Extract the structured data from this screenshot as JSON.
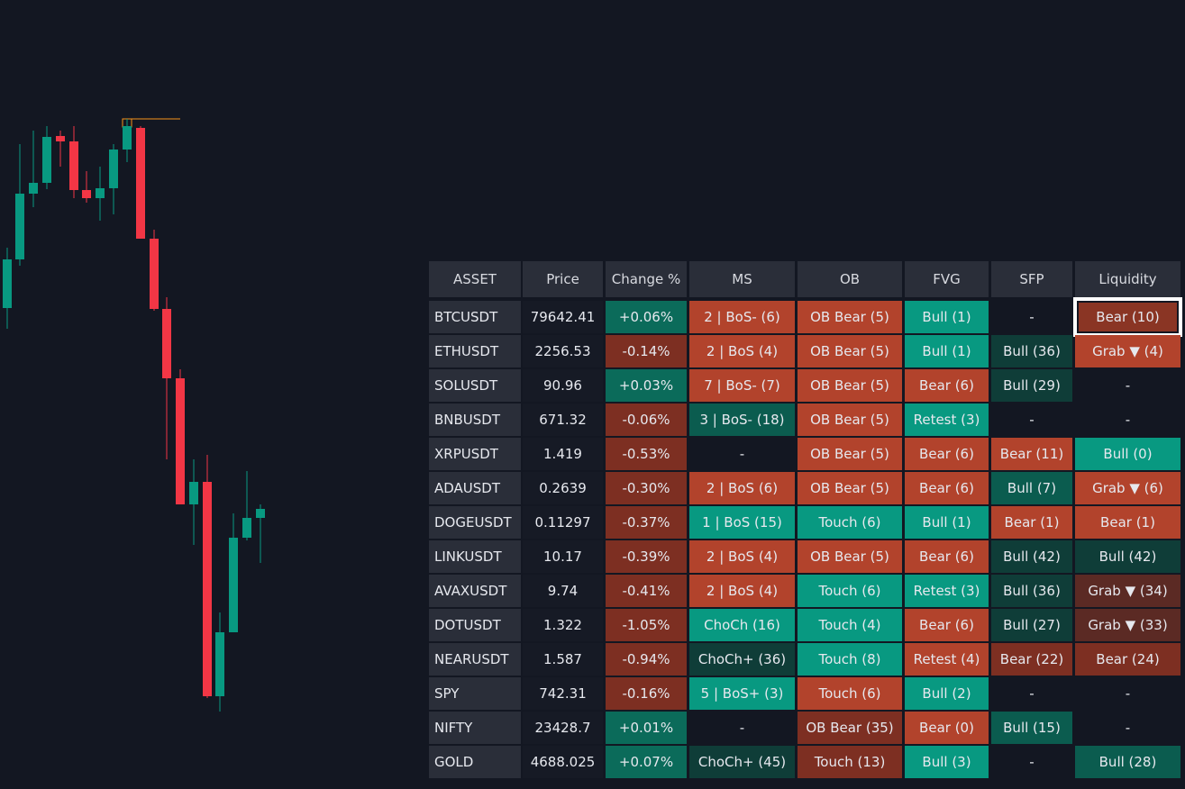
{
  "table": {
    "header": [
      "ASSET",
      "Price",
      "Change %",
      "MS",
      "OB",
      "FVG",
      "SFP",
      "Liquidity"
    ],
    "rows": [
      [
        "BTCUSDT",
        "79642.41",
        "+0.06%",
        "2 | BoS- (6)",
        "OB Bear (5)",
        "Bull (1)",
        "-",
        "Bear (10)"
      ],
      [
        "ETHUSDT",
        "2256.53",
        "-0.14%",
        "2 | BoS (4)",
        "OB Bear (5)",
        "Bull (1)",
        "Bull (36)",
        "Grab ▼ (4)"
      ],
      [
        "SOLUSDT",
        "90.96",
        "+0.03%",
        "7 | BoS- (7)",
        "OB Bear (5)",
        "Bear (6)",
        "Bull (29)",
        "-"
      ],
      [
        "BNBUSDT",
        "671.32",
        "-0.06%",
        "3 | BoS- (18)",
        "OB Bear (5)",
        "Retest (3)",
        "-",
        "-"
      ],
      [
        "XRPUSDT",
        "1.419",
        "-0.53%",
        "-",
        "OB Bear (5)",
        "Bear (6)",
        "Bear (11)",
        "Bull (0)"
      ],
      [
        "ADAUSDT",
        "0.2639",
        "-0.30%",
        "2 | BoS (6)",
        "OB Bear (5)",
        "Bear (6)",
        "Bull (7)",
        "Grab ▼ (6)"
      ],
      [
        "DOGEUSDT",
        "0.11297",
        "-0.37%",
        "1 | BoS (15)",
        "Touch (6)",
        "Bull (1)",
        "Bear (1)",
        "Bear (1)"
      ],
      [
        "LINKUSDT",
        "10.17",
        "-0.39%",
        "2 | BoS (4)",
        "OB Bear (5)",
        "Bear (6)",
        "Bull (42)",
        "Bull (42)"
      ],
      [
        "AVAXUSDT",
        "9.74",
        "-0.41%",
        "2 | BoS (4)",
        "Touch (6)",
        "Retest (3)",
        "Bull (36)",
        "Grab ▼ (34)"
      ],
      [
        "DOTUSDT",
        "1.322",
        "-1.05%",
        "ChoCh (16)",
        "Touch (4)",
        "Bear (6)",
        "Bull (27)",
        "Grab ▼ (33)"
      ],
      [
        "NEARUSDT",
        "1.587",
        "-0.94%",
        "ChoCh+ (36)",
        "Touch (8)",
        "Retest (4)",
        "Bear (22)",
        "Bear (24)"
      ],
      [
        "SPY",
        "742.31",
        "-0.16%",
        "5 | BoS+ (3)",
        "Touch (6)",
        "Bull (2)",
        "-",
        "-"
      ],
      [
        "NIFTY",
        "23428.7",
        "+0.01%",
        "-",
        "OB Bear (35)",
        "Bear (0)",
        "Bull (15)",
        "-"
      ],
      [
        "GOLD",
        "4688.025",
        "+0.07%",
        "ChoCh+ (45)",
        "Touch (13)",
        "Bull (3)",
        "-",
        "Bull (28)"
      ]
    ],
    "fills": [
      [
        "#2a2e39",
        "#161a25",
        "#0b6b5a",
        "#b2432c",
        "#b2432c",
        "#089981",
        null,
        "#8a3524"
      ],
      [
        "#2a2e39",
        "#161a25",
        "#7d2f22",
        "#b2432c",
        "#b2432c",
        "#089981",
        "#0f3d38",
        "#b2432c"
      ],
      [
        "#2a2e39",
        "#161a25",
        "#0b6b5a",
        "#b2432c",
        "#b2432c",
        "#b2432c",
        "#0f3d38",
        null
      ],
      [
        "#2a2e39",
        "#161a25",
        "#7d2f22",
        "#0b5c4f",
        "#b2432c",
        "#089981",
        null,
        null
      ],
      [
        "#2a2e39",
        "#161a25",
        "#7d2f22",
        null,
        "#b2432c",
        "#b2432c",
        "#b2432c",
        "#089981"
      ],
      [
        "#2a2e39",
        "#161a25",
        "#7d2f22",
        "#b2432c",
        "#b2432c",
        "#b2432c",
        "#0b5c4f",
        "#b2432c"
      ],
      [
        "#2a2e39",
        "#161a25",
        "#7d2f22",
        "#089981",
        "#089981",
        "#089981",
        "#b2432c",
        "#b2432c"
      ],
      [
        "#2a2e39",
        "#161a25",
        "#7d2f22",
        "#b2432c",
        "#b2432c",
        "#b2432c",
        "#0f3d38",
        "#0f3d38"
      ],
      [
        "#2a2e39",
        "#161a25",
        "#7d2f22",
        "#b2432c",
        "#089981",
        "#089981",
        "#0f3d38",
        "#5b2a24"
      ],
      [
        "#2a2e39",
        "#161a25",
        "#7d2f22",
        "#089981",
        "#089981",
        "#b2432c",
        "#0f3d38",
        "#5b2a24"
      ],
      [
        "#2a2e39",
        "#161a25",
        "#7d2f22",
        "#0f3d38",
        "#089981",
        "#b2432c",
        "#7d2f22",
        "#7d2f22"
      ],
      [
        "#2a2e39",
        "#161a25",
        "#7d2f22",
        "#089981",
        "#b2432c",
        "#089981",
        null,
        null
      ],
      [
        "#2a2e39",
        "#161a25",
        "#0b6b5a",
        null,
        "#7d2f22",
        "#b2432c",
        "#0b5c4f",
        null
      ],
      [
        "#2a2e39",
        "#161a25",
        "#0b6b5a",
        "#0f3d38",
        "#7d2f22",
        "#089981",
        null,
        "#0b5c4f"
      ]
    ]
  }
}
